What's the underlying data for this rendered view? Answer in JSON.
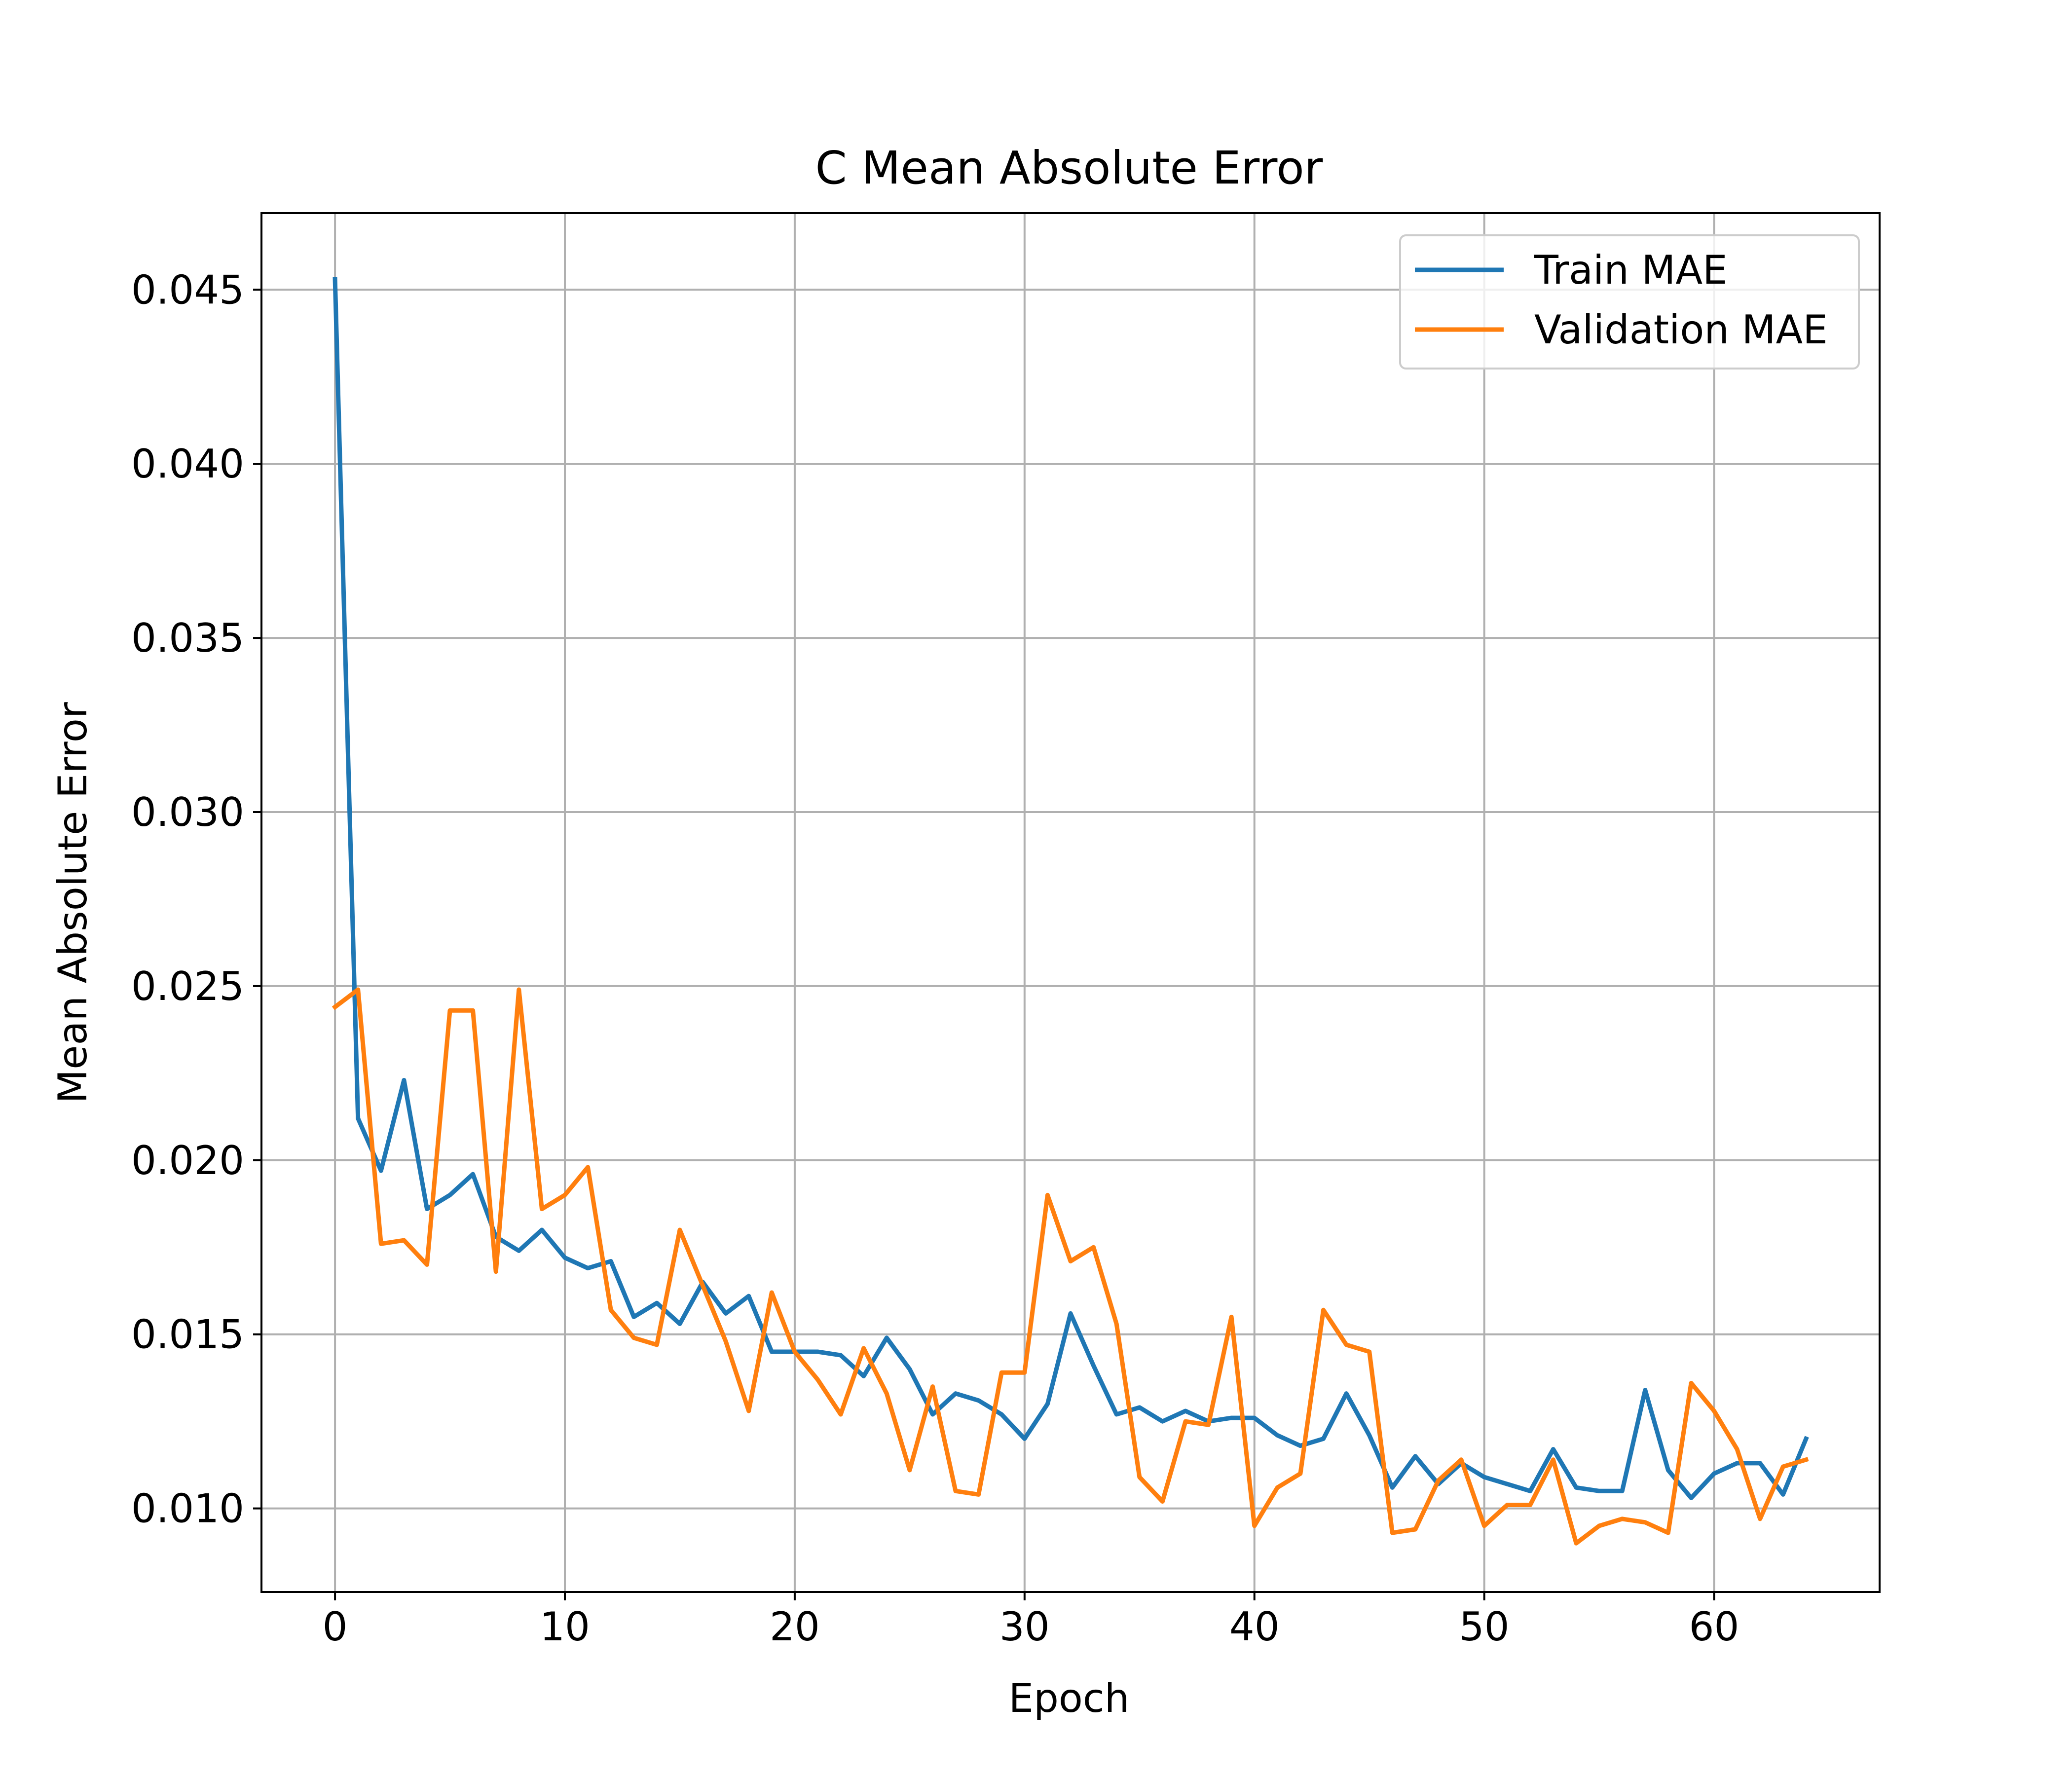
{
  "chart_data": {
    "type": "line",
    "title": "C Mean Absolute Error",
    "xlabel": "Epoch",
    "ylabel": "Mean Absolute Error",
    "xlim": [
      -3.2,
      67.2
    ],
    "ylim": [
      0.0076,
      0.0472
    ],
    "xticks": [
      0,
      10,
      20,
      30,
      40,
      50,
      60
    ],
    "xtick_labels": [
      "0",
      "10",
      "20",
      "30",
      "40",
      "50",
      "60"
    ],
    "yticks": [
      0.01,
      0.015,
      0.02,
      0.025,
      0.03,
      0.035,
      0.04,
      0.045
    ],
    "ytick_labels": [
      "0.010",
      "0.015",
      "0.020",
      "0.025",
      "0.030",
      "0.035",
      "0.040",
      "0.045"
    ],
    "grid": true,
    "legend_position": "top-right",
    "x": [
      0,
      1,
      2,
      3,
      4,
      5,
      6,
      7,
      8,
      9,
      10,
      11,
      12,
      13,
      14,
      15,
      16,
      17,
      18,
      19,
      20,
      21,
      22,
      23,
      24,
      25,
      26,
      27,
      28,
      29,
      30,
      31,
      32,
      33,
      34,
      35,
      36,
      37,
      38,
      39,
      40,
      41,
      42,
      43,
      44,
      45,
      46,
      47,
      48,
      49,
      50,
      51,
      52,
      53,
      54,
      55,
      56,
      57,
      58,
      59,
      60,
      61,
      62,
      63,
      64
    ],
    "series": [
      {
        "name": "Train MAE",
        "color": "#1f77b4",
        "values": [
          0.0453,
          0.0212,
          0.0197,
          0.0223,
          0.0186,
          0.019,
          0.0196,
          0.0178,
          0.0174,
          0.018,
          0.0172,
          0.0169,
          0.0171,
          0.0155,
          0.0159,
          0.0153,
          0.0165,
          0.0156,
          0.0161,
          0.0145,
          0.0145,
          0.0145,
          0.0144,
          0.0138,
          0.0149,
          0.014,
          0.0127,
          0.0133,
          0.0131,
          0.0127,
          0.012,
          0.013,
          0.0156,
          0.0141,
          0.0127,
          0.0129,
          0.0125,
          0.0128,
          0.0125,
          0.0126,
          0.0126,
          0.0121,
          0.0118,
          0.012,
          0.0133,
          0.0121,
          0.0106,
          0.0115,
          0.0107,
          0.0113,
          0.0109,
          0.0107,
          0.0105,
          0.0117,
          0.0106,
          0.0105,
          0.0105,
          0.0134,
          0.0111,
          0.0103,
          0.011,
          0.0113,
          0.0113,
          0.0104,
          0.012
        ]
      },
      {
        "name": "Validation MAE",
        "color": "#ff7f0e",
        "values": [
          0.0244,
          0.0249,
          0.0176,
          0.0177,
          0.017,
          0.0243,
          0.0243,
          0.0168,
          0.0249,
          0.0186,
          0.019,
          0.0198,
          0.0157,
          0.0149,
          0.0147,
          0.018,
          0.0164,
          0.0148,
          0.0128,
          0.0162,
          0.0145,
          0.0137,
          0.0127,
          0.0146,
          0.0133,
          0.0111,
          0.0135,
          0.0105,
          0.0104,
          0.0139,
          0.0139,
          0.019,
          0.0171,
          0.0175,
          0.0153,
          0.0109,
          0.0102,
          0.0125,
          0.0124,
          0.0155,
          0.0095,
          0.0106,
          0.011,
          0.0157,
          0.0147,
          0.0145,
          0.0093,
          0.0094,
          0.0108,
          0.0114,
          0.0095,
          0.0101,
          0.0101,
          0.0114,
          0.009,
          0.0095,
          0.0097,
          0.0096,
          0.0093,
          0.0136,
          0.0128,
          0.0117,
          0.0097,
          0.0112,
          0.0114
        ]
      }
    ]
  }
}
